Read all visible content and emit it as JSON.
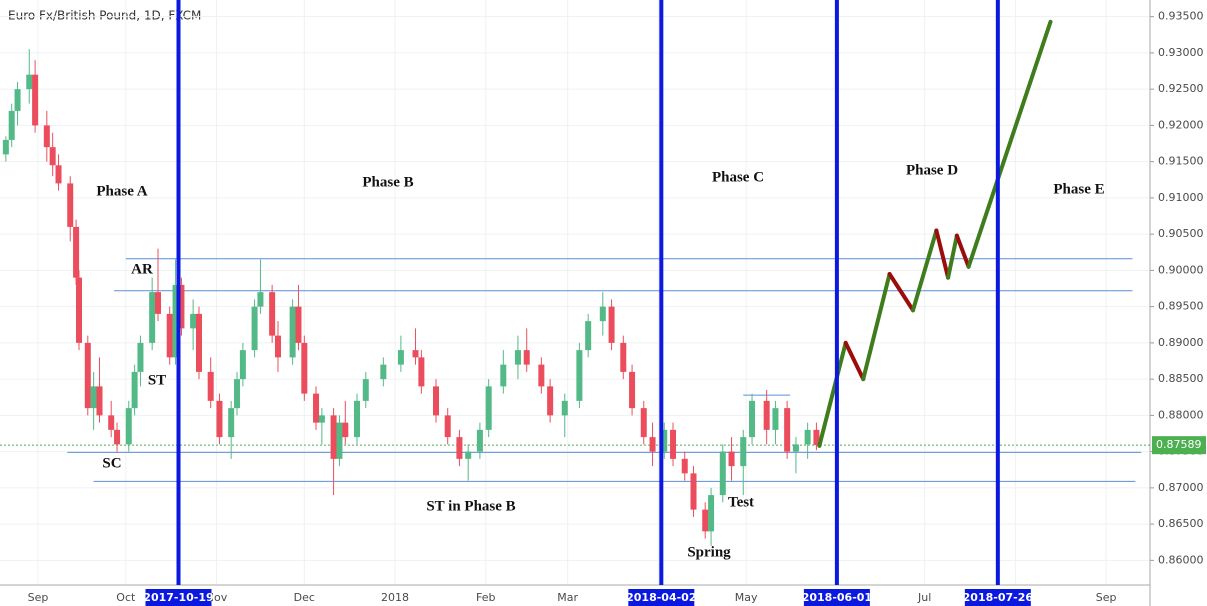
{
  "chart_data": {
    "type": "candlestick",
    "title": "Euro Fx/British Pound, 1D, FXCM",
    "xlim": [
      "2017-08-19",
      "2018-09-16"
    ],
    "ylim": [
      0.8566,
      0.9373
    ],
    "yticks": [
      {
        "value": 0.86,
        "label": "0.86000"
      },
      {
        "value": 0.865,
        "label": "0.86500"
      },
      {
        "value": 0.87,
        "label": "0.87000"
      },
      {
        "value": 0.875,
        "label": "0.87500"
      },
      {
        "value": 0.88,
        "label": "0.88000"
      },
      {
        "value": 0.885,
        "label": "0.88500"
      },
      {
        "value": 0.89,
        "label": "0.89000"
      },
      {
        "value": 0.895,
        "label": "0.89500"
      },
      {
        "value": 0.9,
        "label": "0.90000"
      },
      {
        "value": 0.905,
        "label": "0.90500"
      },
      {
        "value": 0.91,
        "label": "0.91000"
      },
      {
        "value": 0.915,
        "label": "0.91500"
      },
      {
        "value": 0.92,
        "label": "0.92000"
      },
      {
        "value": 0.925,
        "label": "0.92500"
      },
      {
        "value": 0.93,
        "label": "0.93000"
      },
      {
        "value": 0.935,
        "label": "0.93500"
      }
    ],
    "xticks": [
      {
        "value": "2017-09-01",
        "label": "Sep"
      },
      {
        "value": "2017-10-01",
        "label": "Oct"
      },
      {
        "value": "2017-11-01",
        "label": "Nov"
      },
      {
        "value": "2017-12-01",
        "label": "Dec"
      },
      {
        "value": "2018-01-01",
        "label": "2018"
      },
      {
        "value": "2018-02-01",
        "label": "Feb"
      },
      {
        "value": "2018-03-01",
        "label": "Mar"
      },
      {
        "value": "2018-04-01",
        "label": "Apr"
      },
      {
        "value": "2018-05-01",
        "label": "May"
      },
      {
        "value": "2018-06-01",
        "label": "Jun"
      },
      {
        "value": "2018-07-01",
        "label": "Jul"
      },
      {
        "value": "2018-08-01",
        "label": "Aug"
      },
      {
        "value": "2018-09-01",
        "label": "Sep"
      }
    ],
    "grid": true,
    "up_color": "#53b987",
    "down_color": "#eb4d5c",
    "candles": {
      "dates": [
        "2017-08-21",
        "2017-08-23",
        "2017-08-25",
        "2017-08-29",
        "2017-08-31",
        "2017-09-04",
        "2017-09-06",
        "2017-09-08",
        "2017-09-12",
        "2017-09-14",
        "2017-09-15",
        "2017-09-18",
        "2017-09-20",
        "2017-09-22",
        "2017-09-26",
        "2017-09-28",
        "2017-10-02",
        "2017-10-04",
        "2017-10-06",
        "2017-10-10",
        "2017-10-12",
        "2017-10-16",
        "2017-10-18",
        "2017-10-20",
        "2017-10-24",
        "2017-10-26",
        "2017-10-30",
        "2017-11-02",
        "2017-11-06",
        "2017-11-08",
        "2017-11-10",
        "2017-11-14",
        "2017-11-16",
        "2017-11-20",
        "2017-11-22",
        "2017-11-27",
        "2017-11-29",
        "2017-12-01",
        "2017-12-05",
        "2017-12-07",
        "2017-12-11",
        "2017-12-13",
        "2017-12-15",
        "2017-12-19",
        "2017-12-22",
        "2017-12-28",
        "2018-01-03",
        "2018-01-08",
        "2018-01-10",
        "2018-01-15",
        "2018-01-19",
        "2018-01-23",
        "2018-01-26",
        "2018-01-30",
        "2018-02-02",
        "2018-02-07",
        "2018-02-12",
        "2018-02-15",
        "2018-02-20",
        "2018-02-23",
        "2018-02-28",
        "2018-03-05",
        "2018-03-08",
        "2018-03-13",
        "2018-03-16",
        "2018-03-20",
        "2018-03-23",
        "2018-03-27",
        "2018-03-30",
        "2018-04-03",
        "2018-04-06",
        "2018-04-10",
        "2018-04-13",
        "2018-04-17",
        "2018-04-19",
        "2018-04-23",
        "2018-04-26",
        "2018-04-30",
        "2018-05-03",
        "2018-05-08",
        "2018-05-11",
        "2018-05-15",
        "2018-05-18",
        "2018-05-22",
        "2018-05-25"
      ],
      "open": [
        0.916,
        0.918,
        0.922,
        0.925,
        0.927,
        0.92,
        0.917,
        0.9145,
        0.912,
        0.906,
        0.899,
        0.89,
        0.881,
        0.884,
        0.88,
        0.878,
        0.876,
        0.881,
        0.886,
        0.89,
        0.897,
        0.894,
        0.888,
        0.898,
        0.892,
        0.894,
        0.886,
        0.882,
        0.877,
        0.881,
        0.885,
        0.889,
        0.895,
        0.897,
        0.891,
        0.888,
        0.895,
        0.89,
        0.883,
        0.879,
        0.88,
        0.874,
        0.879,
        0.877,
        0.882,
        0.885,
        0.887,
        0.889,
        0.888,
        0.884,
        0.88,
        0.877,
        0.874,
        0.875,
        0.878,
        0.884,
        0.887,
        0.889,
        0.887,
        0.884,
        0.88,
        0.882,
        0.889,
        0.893,
        0.895,
        0.89,
        0.886,
        0.881,
        0.877,
        0.875,
        0.878,
        0.874,
        0.872,
        0.867,
        0.864,
        0.869,
        0.875,
        0.873,
        0.877,
        0.882,
        0.878,
        0.881,
        0.875,
        0.876,
        0.878
      ],
      "high": [
        0.9185,
        0.923,
        0.926,
        0.9305,
        0.929,
        0.922,
        0.919,
        0.916,
        0.913,
        0.907,
        0.9,
        0.891,
        0.886,
        0.888,
        0.882,
        0.879,
        0.882,
        0.887,
        0.891,
        0.899,
        0.903,
        0.895,
        0.9015,
        0.899,
        0.896,
        0.895,
        0.888,
        0.883,
        0.882,
        0.886,
        0.89,
        0.896,
        0.9015,
        0.898,
        0.893,
        0.896,
        0.898,
        0.891,
        0.884,
        0.881,
        0.881,
        0.88,
        0.882,
        0.883,
        0.886,
        0.888,
        0.891,
        0.892,
        0.889,
        0.885,
        0.881,
        0.878,
        0.876,
        0.879,
        0.885,
        0.889,
        0.891,
        0.892,
        0.888,
        0.885,
        0.883,
        0.89,
        0.894,
        0.897,
        0.896,
        0.891,
        0.887,
        0.882,
        0.879,
        0.879,
        0.879,
        0.875,
        0.873,
        0.868,
        0.87,
        0.876,
        0.877,
        0.878,
        0.883,
        0.8835,
        0.882,
        0.882,
        0.877,
        0.879,
        0.879
      ],
      "low": [
        0.915,
        0.917,
        0.92,
        0.923,
        0.919,
        0.915,
        0.913,
        0.911,
        0.904,
        0.898,
        0.889,
        0.88,
        0.878,
        0.879,
        0.877,
        0.875,
        0.875,
        0.88,
        0.884,
        0.889,
        0.893,
        0.887,
        0.887,
        0.891,
        0.889,
        0.885,
        0.881,
        0.876,
        0.874,
        0.88,
        0.884,
        0.888,
        0.894,
        0.89,
        0.886,
        0.887,
        0.889,
        0.882,
        0.878,
        0.876,
        0.869,
        0.873,
        0.876,
        0.876,
        0.881,
        0.884,
        0.886,
        0.887,
        0.883,
        0.879,
        0.876,
        0.873,
        0.871,
        0.874,
        0.877,
        0.883,
        0.885,
        0.886,
        0.883,
        0.879,
        0.877,
        0.881,
        0.888,
        0.891,
        0.889,
        0.885,
        0.88,
        0.876,
        0.873,
        0.874,
        0.873,
        0.871,
        0.866,
        0.863,
        0.862,
        0.868,
        0.871,
        0.869,
        0.876,
        0.876,
        0.876,
        0.874,
        0.872,
        0.874,
        0.8752
      ],
      "close": [
        0.918,
        0.922,
        0.925,
        0.927,
        0.92,
        0.917,
        0.9145,
        0.912,
        0.906,
        0.899,
        0.89,
        0.881,
        0.884,
        0.88,
        0.878,
        0.876,
        0.881,
        0.886,
        0.89,
        0.897,
        0.894,
        0.888,
        0.898,
        0.892,
        0.894,
        0.886,
        0.882,
        0.877,
        0.881,
        0.885,
        0.889,
        0.895,
        0.897,
        0.891,
        0.888,
        0.895,
        0.89,
        0.883,
        0.879,
        0.88,
        0.874,
        0.879,
        0.877,
        0.882,
        0.885,
        0.887,
        0.889,
        0.888,
        0.884,
        0.88,
        0.877,
        0.874,
        0.875,
        0.878,
        0.884,
        0.887,
        0.889,
        0.887,
        0.884,
        0.88,
        0.882,
        0.889,
        0.893,
        0.895,
        0.89,
        0.886,
        0.881,
        0.877,
        0.875,
        0.878,
        0.874,
        0.872,
        0.867,
        0.864,
        0.869,
        0.875,
        0.873,
        0.877,
        0.882,
        0.878,
        0.881,
        0.875,
        0.876,
        0.878,
        0.8759
      ]
    },
    "last_price": 0.87589,
    "last_price_color": "#4caf50",
    "levels_color": "#5b8fd6",
    "levels": [
      {
        "value": 0.9016,
        "start": "2017-10-01",
        "end": "2018-09-10"
      },
      {
        "value": 0.8972,
        "start": "2017-09-27",
        "end": "2018-09-10"
      },
      {
        "value": 0.8749,
        "start": "2017-09-11",
        "end": "2018-09-13"
      },
      {
        "value": 0.8709,
        "start": "2017-09-20",
        "end": "2018-09-11"
      },
      {
        "value": 0.8828,
        "start": "2018-04-30",
        "end": "2018-05-16"
      }
    ],
    "markers_color": "#0b18e0",
    "markers": [
      "2017-10-19",
      "2018-04-02",
      "2018-06-01",
      "2018-07-26"
    ],
    "projection": {
      "x": [
        "2018-05-26",
        "2018-06-04",
        "2018-06-10",
        "2018-06-19",
        "2018-06-27",
        "2018-07-05",
        "2018-07-09",
        "2018-07-12",
        "2018-07-16",
        "2018-08-13"
      ],
      "y": [
        0.8758,
        0.89,
        0.885,
        0.8995,
        0.8945,
        0.9055,
        0.899,
        0.9048,
        0.9005,
        0.9343
      ],
      "up_color": "#3f7d1c",
      "down_color": "#9b0d0d"
    },
    "annotations": [
      "Phase A",
      "Phase B",
      "Phase C",
      "Phase D",
      "Phase E",
      "AR",
      "ST",
      "SC",
      "ST in Phase B",
      "Test",
      "Spring"
    ]
  }
}
